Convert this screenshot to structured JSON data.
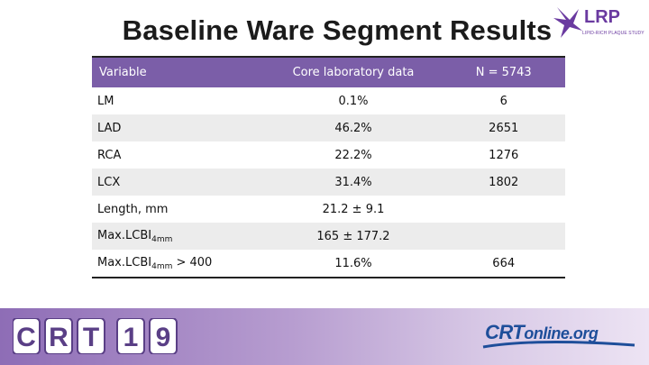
{
  "title": "Baseline Ware Segment Results",
  "logo": {
    "text": "LRP",
    "subtitle": "LIPID-RICH PLAQUE STUDY"
  },
  "table": {
    "headers": [
      "Variable",
      "Core laboratory data",
      "N = 5743"
    ],
    "rows": [
      {
        "variable": "LM",
        "variable_sub": "",
        "variable_suffix": "",
        "core": "0.1%",
        "n": "6"
      },
      {
        "variable": "LAD",
        "variable_sub": "",
        "variable_suffix": "",
        "core": "46.2%",
        "n": "2651"
      },
      {
        "variable": "RCA",
        "variable_sub": "",
        "variable_suffix": "",
        "core": "22.2%",
        "n": "1276"
      },
      {
        "variable": "LCX",
        "variable_sub": "",
        "variable_suffix": "",
        "core": "31.4%",
        "n": "1802"
      },
      {
        "variable": "Length, mm",
        "variable_sub": "",
        "variable_suffix": "",
        "core": "21.2 ± 9.1",
        "n": ""
      },
      {
        "variable": "Max.LCBI",
        "variable_sub": "4mm",
        "variable_suffix": "",
        "core": "165  ± 177.2",
        "n": ""
      },
      {
        "variable": "Max.LCBI",
        "variable_sub": "4mm",
        "variable_suffix": " > 400",
        "core": "11.6%",
        "n": "664"
      }
    ]
  },
  "footer": {
    "crt_logo": "CRT19",
    "crt_online": {
      "main": "CRT",
      "suffix": "online.org"
    }
  },
  "colors": {
    "header_bg": "#7b5ea8",
    "band_bg": "#ececec",
    "accent_purple": "#6a3aa0",
    "crt_blue": "#1e4e9a"
  }
}
